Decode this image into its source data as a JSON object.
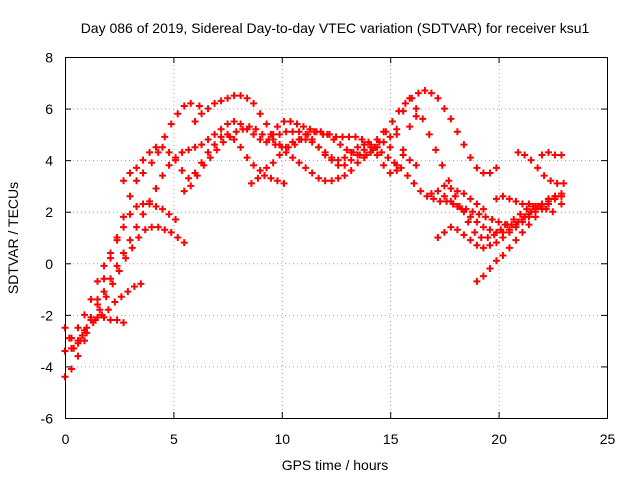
{
  "chart_data": {
    "type": "scatter",
    "title": "Day 086 of 2019, Sidereal Day-to-day VTEC variation (SDTVAR) for receiver ksu1",
    "xlabel": "GPS time / hours",
    "ylabel": "SDTVAR / TECUs",
    "xlim": [
      0,
      25
    ],
    "ylim": [
      -6,
      8
    ],
    "xticks": [
      "0",
      "5",
      "10",
      "15",
      "20",
      "25"
    ],
    "yticks": [
      "-6",
      "-4",
      "-2",
      "0",
      "2",
      "4",
      "6",
      "8"
    ],
    "grid": true,
    "marker": "plus",
    "color": "#ff0000",
    "series": [
      {
        "x": [
          0.0,
          0.3,
          0.6,
          0.9,
          1.2,
          1.5,
          1.8,
          2.1,
          2.4,
          2.7,
          3.0,
          3.3,
          3.6,
          4.0,
          4.3,
          4.6,
          4.9,
          5.2,
          5.5,
          5.8,
          6.2
        ],
        "y": [
          -4.4,
          -4.1,
          -3.6,
          -3.0,
          -2.2,
          -1.4,
          -0.6,
          0.2,
          1.0,
          1.8,
          2.6,
          3.2,
          3.5,
          3.9,
          4.3,
          4.9,
          5.4,
          5.8,
          6.1,
          6.2,
          6.1
        ]
      },
      {
        "x": [
          0.0,
          0.3,
          0.6,
          0.9,
          1.2,
          1.5,
          1.8,
          2.1,
          2.4,
          2.7,
          3.0,
          3.3,
          3.6,
          3.9,
          4.2,
          4.5,
          4.8,
          5.1,
          5.4,
          5.7,
          6.0,
          6.3,
          6.6,
          6.9,
          7.2,
          7.5,
          7.8,
          8.1,
          8.4,
          8.7,
          9.0,
          9.3,
          9.6,
          9.9,
          10.2,
          10.5,
          10.8,
          11.1,
          11.4,
          11.7,
          12.0,
          12.3,
          12.6,
          12.9,
          13.2,
          13.5,
          13.8,
          14.1,
          14.4,
          14.7
        ],
        "y": [
          -3.4,
          -3.3,
          -3.0,
          -2.6,
          -2.1,
          -1.6,
          -1.1,
          -0.6,
          -0.1,
          0.4,
          0.9,
          1.4,
          1.9,
          2.4,
          2.9,
          3.4,
          3.8,
          4.1,
          4.3,
          4.4,
          4.5,
          4.6,
          4.8,
          5.0,
          5.2,
          5.4,
          5.5,
          5.4,
          5.2,
          5.0,
          4.8,
          4.7,
          4.8,
          5.0,
          5.1,
          5.1,
          5.1,
          5.0,
          4.8,
          4.5,
          4.2,
          4.0,
          3.8,
          3.8,
          4.0,
          4.2,
          4.4,
          4.6,
          4.8,
          5.1
        ]
      },
      {
        "x": [
          0.3,
          0.6,
          0.9,
          1.2,
          1.5,
          1.8,
          2.1,
          2.4,
          2.7,
          3.0,
          3.3,
          3.6,
          3.9,
          4.2,
          4.5,
          4.8,
          5.1
        ],
        "y": [
          -2.9,
          -2.5,
          -2.0,
          -1.4,
          -0.7,
          -0.1,
          0.4,
          0.9,
          1.4,
          1.9,
          2.2,
          2.3,
          2.3,
          2.2,
          2.1,
          1.9,
          1.7
        ]
      },
      {
        "x": [
          0.7,
          1.0,
          1.3,
          1.6,
          1.9,
          2.2,
          2.5,
          2.8,
          3.1,
          3.4,
          3.7,
          4.0,
          4.3,
          4.6,
          4.9,
          5.2,
          5.5
        ],
        "y": [
          -3.0,
          -2.7,
          -2.3,
          -1.8,
          -1.3,
          -0.8,
          -0.3,
          0.2,
          0.6,
          1.0,
          1.3,
          1.4,
          1.4,
          1.3,
          1.2,
          1.0,
          0.8
        ]
      },
      {
        "x": [
          1.4,
          1.7,
          2.0,
          2.3,
          2.6,
          2.9,
          3.2,
          3.5
        ],
        "y": [
          -2.2,
          -2.0,
          -1.8,
          -1.5,
          -1.3,
          -1.1,
          -0.9,
          -0.8
        ]
      },
      {
        "x": [
          0.0,
          0.2,
          0.4,
          0.6,
          0.8,
          1.0,
          1.2,
          1.5,
          1.8,
          2.1,
          2.4,
          2.7
        ],
        "y": [
          -2.5,
          -2.9,
          -3.3,
          -3.1,
          -2.8,
          -2.5,
          -2.2,
          -2.1,
          -2.1,
          -2.2,
          -2.2,
          -2.3
        ]
      },
      {
        "x": [
          5.5,
          5.8,
          6.1,
          6.4,
          6.7,
          7.0,
          7.3,
          7.6,
          7.9,
          8.2,
          8.5,
          8.8,
          9.1,
          9.4,
          9.7,
          10.0,
          10.3,
          10.6,
          10.9,
          11.2,
          11.5,
          11.8,
          12.1,
          12.4,
          12.7,
          13.0,
          13.3,
          13.6,
          13.9,
          14.2,
          14.5,
          14.8,
          15.1,
          15.4,
          15.7,
          16.0,
          16.3,
          16.6,
          16.9,
          17.2,
          17.5,
          17.8,
          18.1,
          18.4,
          18.7,
          19.0,
          19.3,
          19.6,
          19.9
        ],
        "y": [
          2.8,
          3.0,
          3.4,
          3.8,
          4.1,
          4.4,
          4.7,
          4.9,
          5.1,
          5.2,
          5.3,
          5.2,
          5.0,
          4.8,
          4.6,
          4.5,
          4.5,
          4.6,
          4.8,
          5.0,
          5.1,
          5.1,
          5.0,
          4.8,
          4.6,
          4.4,
          4.3,
          4.2,
          4.2,
          4.4,
          4.7,
          5.1,
          5.5,
          5.9,
          6.2,
          6.4,
          6.6,
          6.7,
          6.6,
          6.4,
          6.0,
          5.6,
          5.1,
          4.6,
          4.1,
          3.7,
          3.5,
          3.5,
          3.7
        ]
      },
      {
        "x": [
          6.0,
          6.3,
          6.6,
          6.9,
          7.2,
          7.5,
          7.8,
          8.1,
          8.4,
          8.7,
          9.0,
          9.3,
          9.6,
          9.9,
          10.2,
          10.5,
          10.8,
          11.1,
          11.4,
          11.7,
          12.0,
          12.3,
          12.6,
          12.9,
          13.2,
          13.5,
          13.8,
          14.1,
          14.4,
          14.7,
          15.0,
          15.3
        ],
        "y": [
          5.5,
          5.8,
          6.0,
          6.2,
          6.3,
          6.4,
          6.5,
          6.5,
          6.4,
          6.2,
          5.8,
          5.4,
          5.0,
          4.6,
          4.3,
          4.1,
          3.9,
          3.7,
          3.5,
          3.3,
          3.2,
          3.2,
          3.3,
          3.4,
          3.6,
          3.9,
          4.1,
          4.3,
          4.5,
          4.7,
          4.9,
          5.0
        ]
      },
      {
        "x": [
          8.6,
          8.9,
          9.2,
          9.5,
          9.8,
          10.1
        ],
        "y": [
          3.1,
          3.3,
          3.4,
          3.3,
          3.2,
          3.1
        ]
      },
      {
        "x": [
          9.5,
          9.8,
          10.1,
          10.4,
          10.7,
          11.0,
          11.3,
          11.6,
          11.9,
          12.2,
          12.5,
          12.8,
          13.1,
          13.4,
          13.7,
          14.0,
          14.3,
          14.6,
          14.9,
          15.2,
          15.5,
          15.8,
          16.1,
          16.4,
          16.7,
          17.0,
          17.3,
          17.6,
          17.9,
          18.2,
          18.5,
          18.8,
          19.1,
          19.4,
          19.7,
          20.0,
          20.3,
          20.6,
          20.9,
          21.2,
          21.5,
          21.8
        ],
        "y": [
          5.0,
          5.3,
          5.5,
          5.5,
          5.4,
          5.3,
          5.2,
          5.1,
          5.0,
          5.0,
          4.9,
          4.9,
          4.9,
          4.9,
          4.8,
          4.7,
          4.5,
          4.3,
          4.1,
          3.9,
          3.7,
          3.4,
          3.1,
          2.8,
          2.6,
          2.5,
          2.4,
          2.4,
          2.3,
          2.2,
          2.1,
          2.0,
          1.9,
          1.8,
          1.7,
          1.6,
          1.5,
          1.5,
          1.6,
          1.8,
          2.0,
          2.2
        ]
      },
      {
        "x": [
          15.0,
          15.3,
          15.6,
          15.9,
          16.2
        ],
        "y": [
          4.5,
          5.2,
          5.9,
          6.4,
          5.7
        ]
      },
      {
        "x": [
          15.3,
          15.6,
          15.9,
          16.2,
          16.5,
          16.8,
          17.1,
          17.4,
          17.7,
          18.0,
          18.3,
          18.6,
          18.9,
          19.2,
          19.5,
          19.8,
          20.1,
          20.4,
          20.7,
          21.0,
          21.3,
          21.6,
          21.9,
          22.2,
          22.5
        ],
        "y": [
          3.6,
          4.4,
          5.3,
          6.0,
          5.6,
          5.0,
          4.4,
          3.8,
          3.2,
          2.6,
          2.1,
          1.6,
          1.2,
          1.0,
          1.0,
          1.1,
          1.3,
          1.5,
          1.7,
          1.9,
          2.1,
          2.2,
          2.2,
          2.1,
          2.0
        ]
      },
      {
        "x": [
          16.9,
          17.2,
          17.5,
          17.8,
          18.1,
          18.4,
          18.7,
          19.0,
          19.3
        ],
        "y": [
          2.7,
          2.8,
          3.0,
          2.9,
          2.8,
          2.7,
          2.5,
          2.3,
          2.1
        ]
      },
      {
        "x": [
          17.5,
          17.8,
          18.1,
          18.4,
          18.7,
          19.0,
          19.3,
          19.6,
          19.9,
          20.2,
          20.5,
          20.8,
          21.1,
          21.4,
          21.7,
          22.0,
          22.3,
          22.6,
          22.9
        ],
        "y": [
          2.6,
          2.4,
          2.2,
          2.0,
          1.8,
          1.6,
          1.4,
          1.3,
          1.2,
          1.2,
          1.3,
          1.5,
          1.7,
          1.9,
          2.1,
          2.3,
          2.5,
          2.6,
          2.6
        ]
      },
      {
        "x": [
          17.2,
          17.5,
          17.8,
          18.1,
          18.4,
          18.7,
          19.0,
          19.3,
          19.6,
          19.9,
          20.2,
          20.5,
          20.8,
          21.1,
          21.4,
          21.7,
          22.0,
          22.3,
          22.6,
          22.9
        ],
        "y": [
          1.0,
          1.2,
          1.4,
          1.3,
          1.1,
          0.9,
          0.7,
          0.6,
          0.7,
          0.8,
          1.0,
          1.2,
          1.4,
          1.6,
          1.8,
          2.0,
          2.2,
          2.4,
          2.5,
          2.6
        ]
      },
      {
        "x": [
          19.0,
          19.3,
          19.6,
          19.9,
          20.2,
          20.5,
          20.8,
          21.1,
          21.4,
          21.7,
          22.0,
          22.3,
          22.6,
          22.9
        ],
        "y": [
          -0.7,
          -0.5,
          -0.2,
          0.1,
          0.3,
          0.6,
          0.9,
          1.2,
          1.5,
          1.8,
          2.1,
          2.3,
          2.5,
          2.3
        ]
      },
      {
        "x": [
          19.9,
          20.2,
          20.5,
          20.8,
          21.1,
          21.4,
          21.7,
          22.0,
          22.3,
          22.6,
          22.9
        ],
        "y": [
          2.5,
          2.6,
          2.5,
          2.4,
          2.3,
          2.3,
          2.2,
          2.3,
          2.5,
          2.6,
          2.7
        ]
      },
      {
        "x": [
          20.9,
          21.2,
          21.5,
          21.8,
          22.1,
          22.4,
          22.7,
          23.0
        ],
        "y": [
          4.3,
          4.2,
          4.0,
          3.7,
          3.4,
          3.2,
          3.1,
          3.1
        ]
      },
      {
        "x": [
          22.0,
          22.3,
          22.6,
          22.9
        ],
        "y": [
          4.2,
          4.3,
          4.2,
          4.2
        ]
      },
      {
        "x": [
          2.7,
          3.0,
          3.3,
          3.6,
          3.9,
          4.2,
          4.5,
          4.8,
          5.1,
          5.4,
          5.7,
          6.0,
          6.3,
          6.6,
          6.9,
          7.2,
          7.5,
          7.8,
          8.1,
          8.4,
          8.7,
          9.0,
          9.3,
          9.6,
          9.9,
          10.2,
          10.5,
          10.8,
          11.1,
          11.4,
          11.7,
          12.0,
          12.3,
          12.6,
          12.9,
          13.2,
          13.5,
          13.8,
          14.1,
          14.4,
          14.7,
          15.0,
          15.3,
          15.6,
          15.9,
          16.2
        ],
        "y": [
          3.2,
          3.5,
          3.7,
          4.0,
          4.3,
          4.5,
          4.5,
          4.3,
          4.0,
          3.6,
          3.3,
          3.5,
          3.9,
          4.3,
          4.6,
          4.9,
          5.0,
          4.8,
          4.5,
          4.1,
          3.8,
          3.6,
          3.7,
          3.9,
          4.2,
          4.5,
          4.7,
          4.8,
          4.8,
          4.7,
          4.5,
          4.3,
          4.1,
          4.0,
          4.1,
          4.3,
          4.5,
          4.6,
          4.5,
          4.2,
          3.8,
          3.5,
          3.8,
          4.2,
          4.0,
          3.8
        ]
      }
    ]
  }
}
